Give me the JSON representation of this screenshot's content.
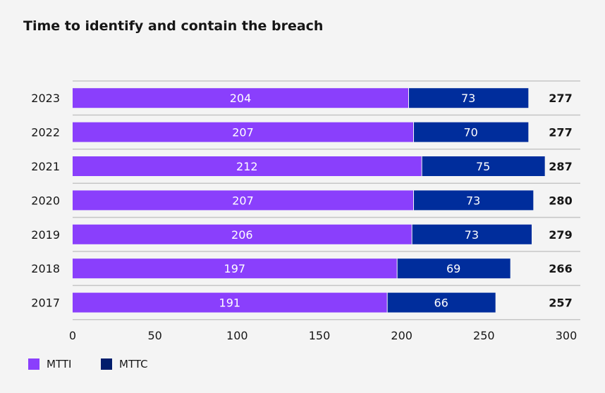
{
  "chart_data": {
    "type": "bar",
    "orientation": "horizontal",
    "stacked": true,
    "title": "Time to identify and contain the breach",
    "categories": [
      "2023",
      "2022",
      "2021",
      "2020",
      "2019",
      "2018",
      "2017"
    ],
    "series": [
      {
        "name": "MTTI",
        "color": "#8a3ffc",
        "values": [
          204,
          207,
          212,
          207,
          206,
          197,
          191
        ]
      },
      {
        "name": "MTTC",
        "color": "#002d9c",
        "legend_color": "#001d6c",
        "values": [
          73,
          70,
          75,
          73,
          73,
          69,
          66
        ]
      }
    ],
    "totals": [
      277,
      277,
      287,
      280,
      279,
      266,
      257
    ],
    "xlim": [
      0,
      300
    ],
    "xticks": [
      0,
      50,
      100,
      150,
      200,
      250,
      300
    ],
    "grid": true,
    "legend_placement": "bottom-left"
  }
}
